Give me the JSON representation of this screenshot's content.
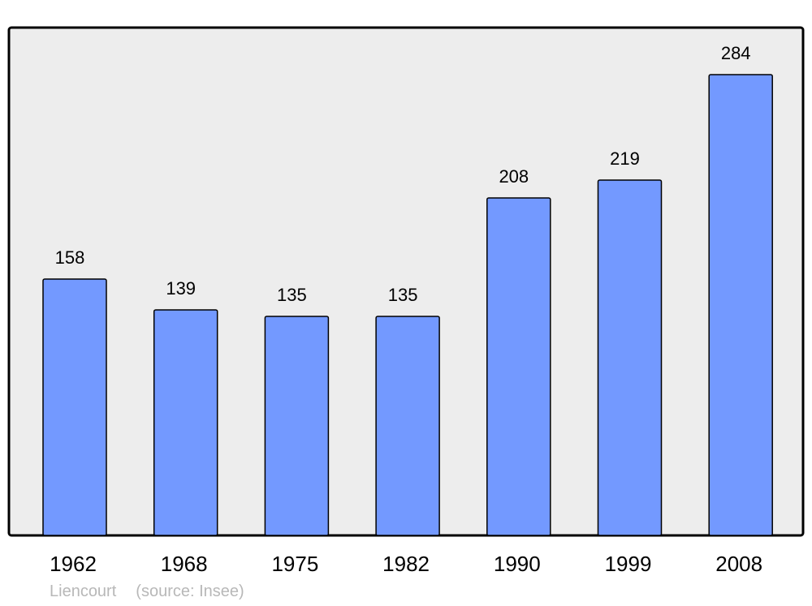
{
  "chart_data": {
    "type": "bar",
    "title": "",
    "xlabel": "",
    "ylabel": "",
    "categories": [
      "1962",
      "1968",
      "1975",
      "1982",
      "1990",
      "1999",
      "2008"
    ],
    "values": [
      158,
      139,
      135,
      135,
      208,
      219,
      284
    ],
    "data_labels": [
      "158",
      "139",
      "135",
      "135",
      "208",
      "219",
      "284"
    ],
    "ylim": [
      0,
      313
    ],
    "grid": false,
    "colors": {
      "bar": "#7399ff",
      "plot_background": "#ededed",
      "border": "#000000",
      "footer_text": "#b8b8b8"
    }
  },
  "footer": {
    "place": "Liencourt",
    "source": "(source: Insee)"
  }
}
